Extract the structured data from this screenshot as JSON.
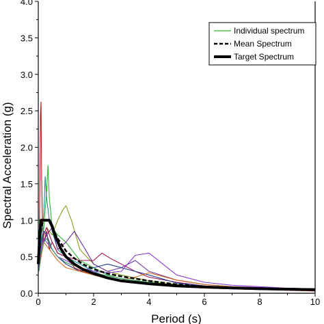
{
  "chart_data": {
    "type": "line",
    "title": "",
    "xlabel": "Period (s)",
    "ylabel": "Spectral Acceleration (g)",
    "xlim": [
      0,
      10
    ],
    "ylim": [
      0,
      4.0
    ],
    "x_ticks": [
      "0",
      "2",
      "4",
      "6",
      "8",
      "10"
    ],
    "y_ticks": [
      "0.0",
      "0.5",
      "1.0",
      "1.5",
      "2.0",
      "2.5",
      "3.0",
      "3.5",
      "4.0"
    ],
    "grid": false,
    "legend_position": "top-right",
    "legend": [
      {
        "label": "Individual spectrum",
        "style": "thin",
        "color": "#2db82d"
      },
      {
        "label": "Mean Spectrum",
        "style": "dashed",
        "color": "#000000"
      },
      {
        "label": "Target Spectrum",
        "style": "thick",
        "color": "#000000"
      }
    ],
    "series": [
      {
        "role": "individual",
        "color": "#b01818",
        "x": [
          0.02,
          0.05,
          0.08,
          0.1,
          0.12,
          0.15,
          0.2,
          0.3,
          0.4,
          0.5,
          0.7,
          1.0,
          1.3,
          1.6,
          2.0,
          2.5,
          3.0,
          4.0,
          5.0,
          6.0,
          7.0,
          8.0,
          9.0,
          10.0
        ],
        "y": [
          0.4,
          1.2,
          2.45,
          2.62,
          1.6,
          1.0,
          0.7,
          0.85,
          0.6,
          0.7,
          0.55,
          0.5,
          0.35,
          0.3,
          0.25,
          0.2,
          0.16,
          0.12,
          0.09,
          0.07,
          0.06,
          0.05,
          0.04,
          0.03
        ]
      },
      {
        "role": "individual",
        "color": "#2db82d",
        "x": [
          0.02,
          0.1,
          0.2,
          0.3,
          0.35,
          0.4,
          0.5,
          0.7,
          1.0,
          1.5,
          2.0,
          2.5,
          3.0,
          4.0,
          5.0,
          6.0,
          7.0,
          8.0,
          9.0,
          10.0
        ],
        "y": [
          0.35,
          0.6,
          0.9,
          1.4,
          1.75,
          1.3,
          0.9,
          0.8,
          0.7,
          0.45,
          0.35,
          0.25,
          0.2,
          0.15,
          0.11,
          0.09,
          0.07,
          0.06,
          0.05,
          0.04
        ]
      },
      {
        "role": "individual",
        "color": "#1a8f8f",
        "x": [
          0.02,
          0.1,
          0.2,
          0.25,
          0.3,
          0.4,
          0.5,
          0.7,
          1.0,
          1.5,
          2.0,
          2.5,
          3.0,
          4.0,
          5.0,
          6.0,
          7.0,
          8.0,
          9.0,
          10.0
        ],
        "y": [
          0.4,
          0.7,
          1.1,
          1.6,
          1.3,
          1.0,
          0.85,
          0.6,
          0.5,
          0.4,
          0.3,
          0.22,
          0.18,
          0.14,
          0.1,
          0.08,
          0.07,
          0.06,
          0.05,
          0.04
        ]
      },
      {
        "role": "individual",
        "color": "#8a9a1a",
        "x": [
          0.02,
          0.1,
          0.2,
          0.3,
          0.5,
          0.7,
          0.9,
          1.0,
          1.2,
          1.5,
          2.0,
          2.5,
          3.0,
          4.0,
          5.0,
          6.0,
          7.0,
          8.0,
          9.0,
          10.0
        ],
        "y": [
          0.35,
          0.6,
          0.8,
          0.9,
          0.8,
          1.0,
          1.15,
          1.2,
          1.0,
          0.6,
          0.4,
          0.3,
          0.25,
          0.17,
          0.12,
          0.09,
          0.07,
          0.06,
          0.05,
          0.04
        ]
      },
      {
        "role": "individual",
        "color": "#6a2ea0",
        "x": [
          0.02,
          0.1,
          0.2,
          0.3,
          0.5,
          0.7,
          1.0,
          1.3,
          1.7,
          2.0,
          2.5,
          3.0,
          3.5,
          4.0,
          5.0,
          6.0,
          7.0,
          8.0,
          9.0,
          10.0
        ],
        "y": [
          0.3,
          0.5,
          0.7,
          0.8,
          0.9,
          0.6,
          0.7,
          0.85,
          0.6,
          0.4,
          0.3,
          0.35,
          0.45,
          0.3,
          0.18,
          0.12,
          0.09,
          0.08,
          0.07,
          0.06
        ]
      },
      {
        "role": "individual",
        "color": "#a01050",
        "x": [
          0.02,
          0.1,
          0.2,
          0.3,
          0.5,
          0.7,
          1.0,
          1.5,
          2.0,
          2.3,
          2.6,
          3.0,
          3.5,
          4.0,
          5.0,
          6.0,
          7.0,
          8.0,
          9.0,
          10.0
        ],
        "y": [
          0.3,
          0.6,
          0.8,
          0.9,
          0.7,
          0.55,
          0.5,
          0.45,
          0.45,
          0.55,
          0.48,
          0.4,
          0.3,
          0.22,
          0.15,
          0.1,
          0.08,
          0.07,
          0.06,
          0.05
        ]
      },
      {
        "role": "individual",
        "color": "#1e3a8f",
        "x": [
          0.02,
          0.1,
          0.2,
          0.3,
          0.5,
          0.7,
          1.0,
          1.5,
          2.0,
          2.5,
          3.0,
          3.5,
          4.0,
          5.0,
          6.0,
          7.0,
          8.0,
          9.0,
          10.0
        ],
        "y": [
          0.4,
          0.7,
          0.85,
          0.8,
          0.6,
          0.5,
          0.4,
          0.3,
          0.35,
          0.4,
          0.35,
          0.3,
          0.25,
          0.14,
          0.1,
          0.08,
          0.07,
          0.06,
          0.05
        ]
      },
      {
        "role": "individual",
        "color": "#d06a1a",
        "x": [
          0.02,
          0.1,
          0.2,
          0.3,
          0.5,
          0.7,
          1.0,
          1.5,
          2.0,
          2.5,
          3.0,
          3.5,
          4.0,
          5.0,
          6.0,
          7.0,
          8.0,
          9.0,
          10.0
        ],
        "y": [
          0.3,
          0.5,
          0.7,
          0.65,
          0.55,
          0.45,
          0.35,
          0.3,
          0.25,
          0.2,
          0.18,
          0.22,
          0.28,
          0.18,
          0.12,
          0.09,
          0.07,
          0.06,
          0.05
        ]
      },
      {
        "role": "individual",
        "color": "#8a3ad0",
        "x": [
          0.02,
          0.1,
          0.2,
          0.3,
          0.5,
          0.7,
          1.0,
          1.5,
          2.0,
          2.5,
          3.0,
          3.5,
          4.0,
          4.5,
          5.0,
          6.0,
          7.0,
          8.0,
          9.0,
          10.0
        ],
        "y": [
          0.35,
          0.6,
          0.75,
          0.7,
          0.6,
          0.5,
          0.45,
          0.35,
          0.3,
          0.28,
          0.3,
          0.52,
          0.55,
          0.4,
          0.25,
          0.15,
          0.11,
          0.09,
          0.07,
          0.06
        ]
      },
      {
        "role": "individual",
        "color": "#3a9a6a",
        "x": [
          0.02,
          0.1,
          0.2,
          0.3,
          0.5,
          0.7,
          1.0,
          1.5,
          2.0,
          2.5,
          3.0,
          4.0,
          5.0,
          6.0,
          7.0,
          8.0,
          9.0,
          10.0
        ],
        "y": [
          0.3,
          0.55,
          0.7,
          0.75,
          0.6,
          0.5,
          0.42,
          0.35,
          0.28,
          0.24,
          0.2,
          0.15,
          0.11,
          0.09,
          0.07,
          0.06,
          0.05,
          0.04
        ]
      },
      {
        "role": "mean",
        "color": "#000000",
        "x": [
          0.0,
          0.05,
          0.1,
          0.15,
          0.2,
          0.3,
          0.4,
          0.5,
          0.7,
          1.0,
          1.3,
          1.6,
          2.0,
          2.5,
          3.0,
          3.5,
          4.0,
          5.0,
          6.0,
          7.0,
          8.0,
          9.0,
          10.0
        ],
        "y": [
          0.5,
          0.72,
          0.88,
          0.96,
          1.0,
          1.0,
          0.98,
          0.9,
          0.75,
          0.58,
          0.48,
          0.4,
          0.33,
          0.27,
          0.23,
          0.2,
          0.17,
          0.12,
          0.09,
          0.07,
          0.06,
          0.05,
          0.045
        ]
      },
      {
        "role": "target",
        "color": "#000000",
        "x": [
          0.0,
          0.05,
          0.1,
          0.15,
          0.2,
          0.3,
          0.4,
          0.5,
          0.6,
          0.8,
          1.0,
          1.3,
          1.6,
          2.0,
          2.5,
          3.0,
          4.0,
          5.0,
          6.0,
          7.0,
          8.0,
          9.0,
          10.0
        ],
        "y": [
          0.4,
          0.78,
          1.0,
          1.0,
          1.0,
          1.0,
          1.0,
          0.92,
          0.8,
          0.62,
          0.5,
          0.4,
          0.33,
          0.27,
          0.21,
          0.17,
          0.13,
          0.1,
          0.085,
          0.072,
          0.062,
          0.055,
          0.05
        ]
      }
    ]
  }
}
